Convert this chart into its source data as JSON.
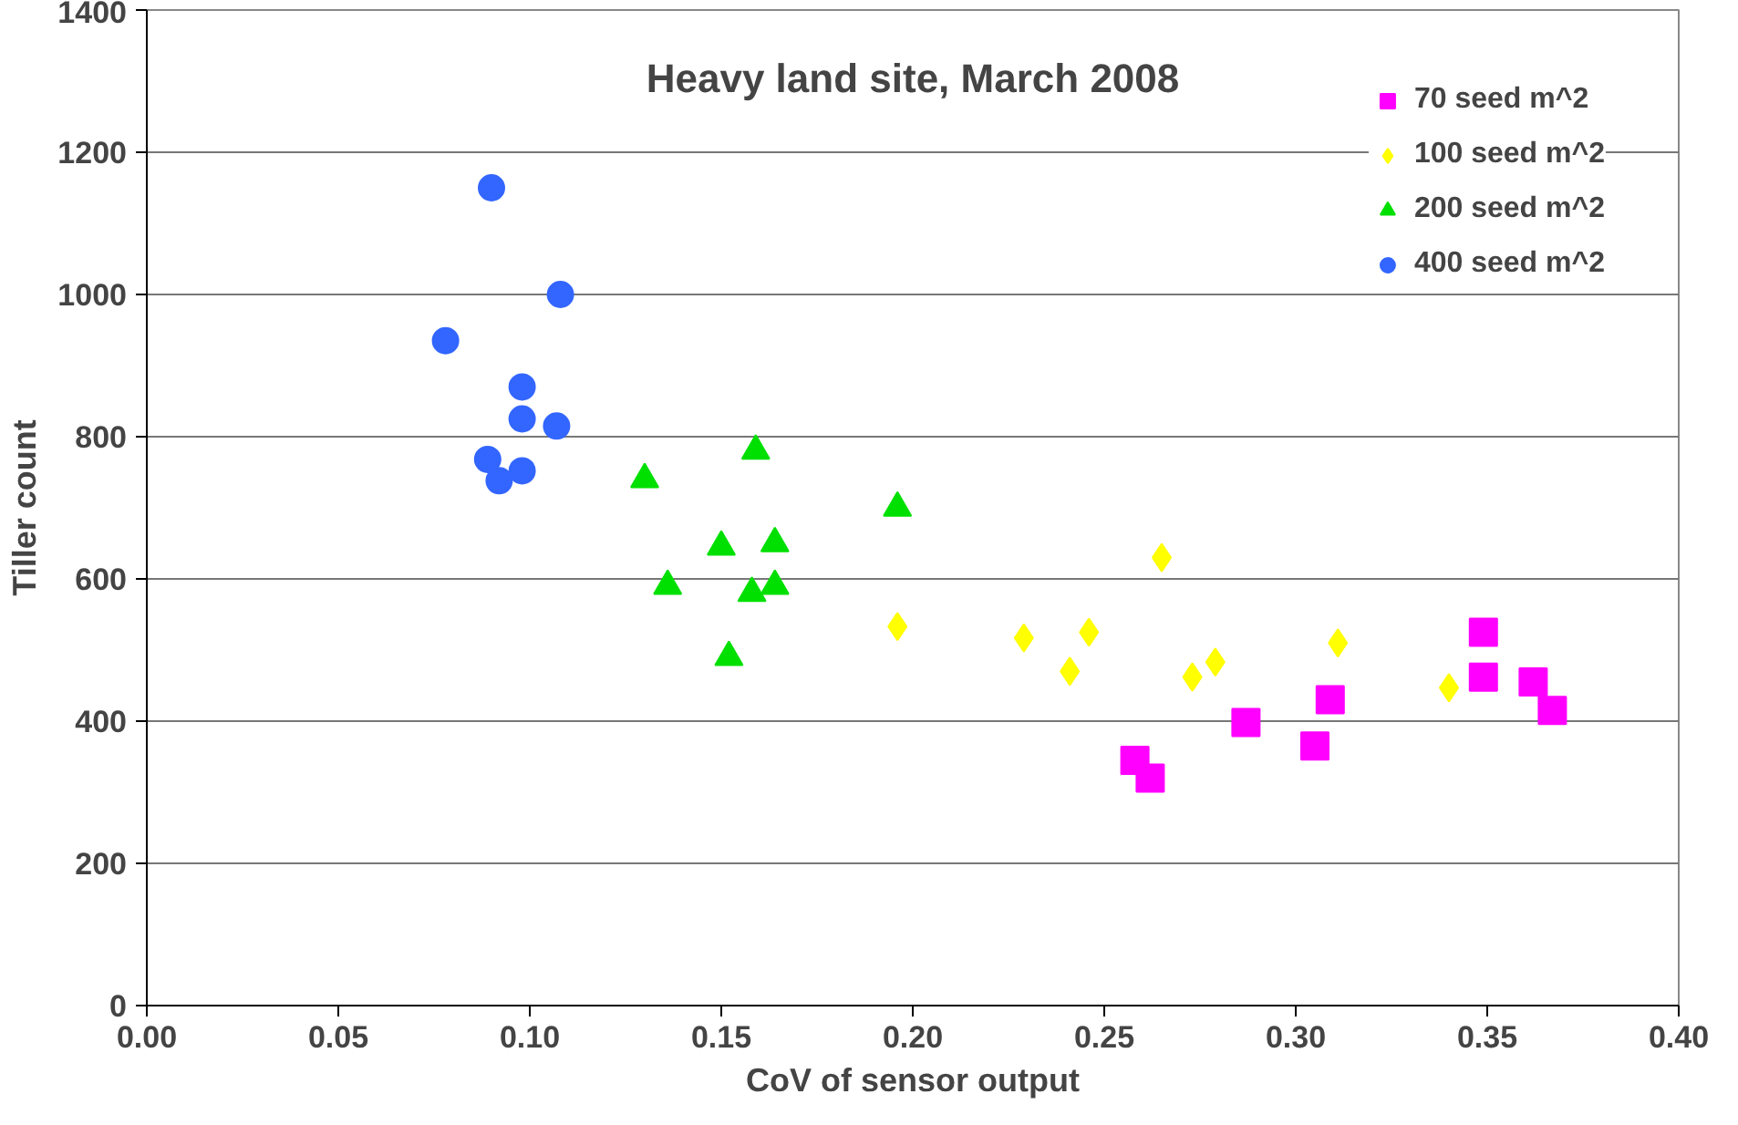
{
  "chart_data": {
    "type": "scatter",
    "title": "Heavy land site, March 2008",
    "xlabel": "CoV of sensor output",
    "ylabel": "Tiller count",
    "xlim": [
      0,
      0.4
    ],
    "ylim": [
      0,
      1400
    ],
    "xticks": [
      {
        "value": 0,
        "label": "0.00"
      },
      {
        "value": 0.05,
        "label": "0.05"
      },
      {
        "value": 0.1,
        "label": "0.10"
      },
      {
        "value": 0.15,
        "label": "0.15"
      },
      {
        "value": 0.2,
        "label": "0.20"
      },
      {
        "value": 0.25,
        "label": "0.25"
      },
      {
        "value": 0.3,
        "label": "0.30"
      },
      {
        "value": 0.35,
        "label": "0.35"
      },
      {
        "value": 0.4,
        "label": "0.40"
      }
    ],
    "yticks": [
      0,
      200,
      400,
      600,
      800,
      1000,
      1200,
      1400
    ],
    "grid": "y",
    "legend": "top right",
    "series": [
      {
        "name": "70 seed m^2",
        "color": "#ff00ff",
        "marker": "square",
        "x": [
          0.258,
          0.262,
          0.287,
          0.305,
          0.309,
          0.349,
          0.349,
          0.362,
          0.367
        ],
        "values": [
          345,
          320,
          398,
          365,
          430,
          462,
          525,
          455,
          415
        ]
      },
      {
        "name": "100 seed m^2",
        "color": "#ffff00",
        "marker": "diamond",
        "x": [
          0.196,
          0.229,
          0.241,
          0.246,
          0.265,
          0.273,
          0.279,
          0.311,
          0.34
        ],
        "values": [
          533,
          517,
          470,
          525,
          630,
          462,
          483,
          510,
          447
        ]
      },
      {
        "name": "200 seed m^2",
        "color": "#00e000",
        "marker": "triangle",
        "x": [
          0.13,
          0.136,
          0.152,
          0.15,
          0.158,
          0.159,
          0.164,
          0.164,
          0.196
        ],
        "values": [
          740,
          590,
          490,
          645,
          580,
          780,
          650,
          590,
          700
        ]
      },
      {
        "name": "400 seed m^2",
        "color": "#3366ff",
        "marker": "circle",
        "x": [
          0.09,
          0.078,
          0.108,
          0.098,
          0.098,
          0.107,
          0.089,
          0.092,
          0.098
        ],
        "values": [
          1150,
          935,
          1000,
          870,
          825,
          815,
          768,
          738,
          752
        ]
      }
    ]
  }
}
